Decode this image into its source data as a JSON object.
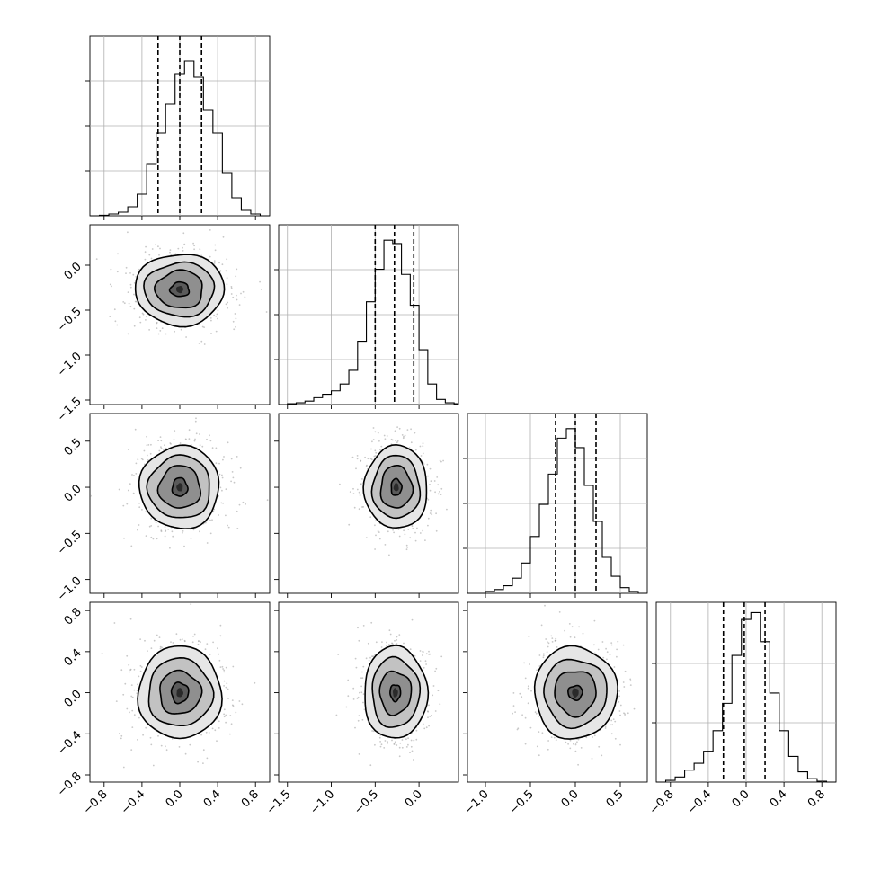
{
  "colors": {
    "frame": "#000000",
    "grid": "#b0b0b0",
    "scatter": "#9a9a9a",
    "contour_fills": [
      "#ffffff",
      "#e6e6e6",
      "#c2c2c2",
      "#8f8f8f",
      "#5a5a5a",
      "#2a2a2a"
    ]
  },
  "chart_data": [
    {
      "type": "histogram",
      "panel": "hist-0",
      "xlim": [
        -0.95,
        0.95
      ],
      "bins": [
        -0.95,
        -0.85,
        -0.75,
        -0.65,
        -0.55,
        -0.45,
        -0.35,
        -0.25,
        -0.15,
        -0.05,
        0.05,
        0.15,
        0.25,
        0.35,
        0.45,
        0.55,
        0.65,
        0.75,
        0.85,
        0.95
      ],
      "counts": [
        0,
        0.003,
        0.01,
        0.02,
        0.05,
        0.12,
        0.29,
        0.46,
        0.62,
        0.79,
        0.86,
        0.77,
        0.59,
        0.46,
        0.24,
        0.1,
        0.03,
        0.01,
        0.0
      ],
      "quantiles": [
        -0.23,
        0.0,
        0.23
      ],
      "ylim": [
        0,
        1.0
      ],
      "ygrid": [
        0.25,
        0.5,
        0.75
      ]
    },
    {
      "type": "histogram",
      "panel": "hist-1",
      "xlim": [
        -1.6,
        0.45
      ],
      "bins": [
        -1.6,
        -1.5,
        -1.4,
        -1.3,
        -1.2,
        -1.1,
        -1.0,
        -0.9,
        -0.8,
        -0.7,
        -0.6,
        -0.5,
        -0.4,
        -0.3,
        -0.2,
        -0.1,
        0.0,
        0.1,
        0.2,
        0.3,
        0.4,
        0.45
      ],
      "counts": [
        0.0,
        0.005,
        0.01,
        0.02,
        0.04,
        0.06,
        0.08,
        0.12,
        0.2,
        0.37,
        0.6,
        0.79,
        0.96,
        0.94,
        0.76,
        0.58,
        0.32,
        0.12,
        0.03,
        0.01,
        0.005
      ],
      "quantiles": [
        -0.5,
        -0.28,
        -0.06
      ],
      "ylim": [
        0,
        1.05
      ],
      "ygrid": [
        0.25,
        0.5,
        0.75
      ]
    },
    {
      "type": "histogram",
      "panel": "hist-2",
      "xlim": [
        -1.2,
        0.8
      ],
      "bins": [
        -1.2,
        -1.1,
        -1.0,
        -0.9,
        -0.8,
        -0.7,
        -0.6,
        -0.5,
        -0.4,
        -0.3,
        -0.2,
        -0.1,
        0.0,
        0.1,
        0.2,
        0.3,
        0.4,
        0.5,
        0.6,
        0.7,
        0.8
      ],
      "counts": [
        0,
        0.0,
        0.01,
        0.02,
        0.04,
        0.08,
        0.16,
        0.3,
        0.47,
        0.63,
        0.82,
        0.87,
        0.77,
        0.57,
        0.38,
        0.19,
        0.09,
        0.03,
        0.01,
        0.0
      ],
      "quantiles": [
        -0.22,
        0.0,
        0.23
      ],
      "ylim": [
        0,
        0.95
      ],
      "ygrid": [
        0.25,
        0.5,
        0.75
      ]
    },
    {
      "type": "histogram",
      "panel": "hist-3",
      "xlim": [
        -0.95,
        0.95
      ],
      "bins": [
        -0.95,
        -0.85,
        -0.75,
        -0.65,
        -0.55,
        -0.45,
        -0.35,
        -0.25,
        -0.15,
        -0.05,
        0.05,
        0.15,
        0.25,
        0.35,
        0.45,
        0.55,
        0.65,
        0.75,
        0.85,
        0.95
      ],
      "counts": [
        0.0,
        0.01,
        0.03,
        0.07,
        0.11,
        0.18,
        0.3,
        0.46,
        0.74,
        0.95,
        0.99,
        0.82,
        0.52,
        0.3,
        0.15,
        0.06,
        0.02,
        0.005,
        0.0
      ],
      "quantiles": [
        -0.24,
        -0.02,
        0.2
      ],
      "ylim": [
        0,
        1.05
      ],
      "ygrid": [
        0.33,
        0.66
      ]
    },
    {
      "type": "contour",
      "panel": "2d-1-0",
      "xlim": [
        -0.95,
        0.95
      ],
      "ylim": [
        -1.55,
        0.45
      ],
      "center": [
        0.0,
        -0.27
      ],
      "levels_radius": [
        [
          0.47,
          0.4
        ],
        [
          0.37,
          0.3
        ],
        [
          0.25,
          0.21
        ],
        [
          0.1,
          0.08
        ]
      ]
    },
    {
      "type": "contour",
      "panel": "2d-2-0",
      "xlim": [
        -0.95,
        0.95
      ],
      "ylim": [
        -1.15,
        0.8
      ],
      "center": [
        0.0,
        0.0
      ],
      "levels_radius": [
        [
          0.42,
          0.45
        ],
        [
          0.33,
          0.34
        ],
        [
          0.22,
          0.23
        ],
        [
          0.08,
          0.1
        ]
      ]
    },
    {
      "type": "contour",
      "panel": "2d-2-1",
      "xlim": [
        -1.6,
        0.45
      ],
      "ylim": [
        -1.15,
        0.8
      ],
      "center": [
        -0.26,
        0.0
      ],
      "levels_radius": [
        [
          0.36,
          0.45
        ],
        [
          0.27,
          0.34
        ],
        [
          0.18,
          0.23
        ],
        [
          0.06,
          0.09
        ]
      ]
    },
    {
      "type": "contour",
      "panel": "2d-3-0",
      "xlim": [
        -0.95,
        0.95
      ],
      "ylim": [
        -0.87,
        0.88
      ],
      "center": [
        0.0,
        0.0
      ],
      "levels_radius": [
        [
          0.44,
          0.45
        ],
        [
          0.34,
          0.33
        ],
        [
          0.22,
          0.21
        ],
        [
          0.09,
          0.1
        ]
      ]
    },
    {
      "type": "contour",
      "panel": "2d-3-1",
      "xlim": [
        -1.6,
        0.45
      ],
      "ylim": [
        -0.87,
        0.88
      ],
      "center": [
        -0.27,
        0.0
      ],
      "levels_radius": [
        [
          0.36,
          0.45
        ],
        [
          0.27,
          0.34
        ],
        [
          0.18,
          0.21
        ],
        [
          0.06,
          0.08
        ]
      ]
    },
    {
      "type": "contour",
      "panel": "2d-3-2",
      "xlim": [
        -1.2,
        0.8
      ],
      "ylim": [
        -0.87,
        0.88
      ],
      "center": [
        0.0,
        0.0
      ],
      "levels_radius": [
        [
          0.46,
          0.45
        ],
        [
          0.35,
          0.33
        ],
        [
          0.23,
          0.22
        ],
        [
          0.08,
          0.07
        ]
      ]
    }
  ],
  "axes": {
    "col0_x_ticks": [
      -0.8,
      -0.4,
      0.0,
      0.4,
      0.8
    ],
    "col0_x_labels": [
      "−0.8",
      "−0.4",
      "0.0",
      "0.4",
      "0.8"
    ],
    "col1_x_ticks": [
      -1.5,
      -1.0,
      -0.5,
      0.0
    ],
    "col1_x_labels": [
      "−1.5",
      "−1.0",
      "−0.5",
      "0.0"
    ],
    "col2_x_ticks": [
      -1.0,
      -0.5,
      0.0,
      0.5
    ],
    "col2_x_labels": [
      "−1.0",
      "−0.5",
      "0.0",
      "0.5"
    ],
    "col3_x_ticks": [
      -0.8,
      -0.4,
      0.0,
      0.4,
      0.8
    ],
    "col3_x_labels": [
      "−0.8",
      "−0.4",
      "0.0",
      "0.4",
      "0.8"
    ],
    "row1_y_ticks": [
      0.0,
      -0.5,
      -1.0,
      -1.5
    ],
    "row1_y_labels": [
      "0.0",
      "−0.5",
      "−1.0",
      "−1.5"
    ],
    "row2_y_ticks": [
      0.5,
      0.0,
      -0.5,
      -1.0
    ],
    "row2_y_labels": [
      "0.5",
      "0.0",
      "−0.5",
      "−1.0"
    ],
    "row3_y_ticks": [
      0.8,
      0.4,
      0.0,
      -0.4,
      -0.8
    ],
    "row3_y_labels": [
      "0.8",
      "0.4",
      "0.0",
      "−0.4",
      "−0.8"
    ]
  }
}
